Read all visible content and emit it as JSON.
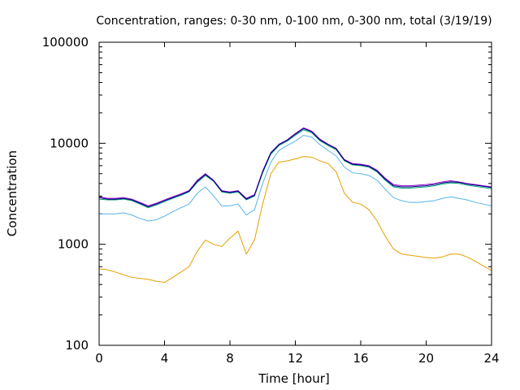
{
  "chart_data": {
    "type": "line",
    "title": "Concentration, ranges: 0-30 nm, 0-100 nm, 0-300 nm, total (3/19/19)",
    "xlabel": "Time [hour]",
    "ylabel": "Concentration",
    "xlim": [
      0,
      24
    ],
    "ylim": [
      100,
      100000
    ],
    "yscale": "log",
    "grid": false,
    "x_ticks": [
      "0",
      "4",
      "8",
      "12",
      "16",
      "20",
      "24"
    ],
    "y_ticks": [
      "100",
      "1000",
      "10000",
      "100000"
    ],
    "colors": {
      "series1": "#e69f00",
      "series2": "#56b4e9",
      "series3": "#009e73",
      "series4": "#9400d3",
      "series5": "#000080"
    },
    "x": [
      0,
      0.5,
      1,
      1.5,
      2,
      2.5,
      3,
      3.5,
      4,
      4.5,
      5,
      5.5,
      6,
      6.5,
      7,
      7.5,
      8,
      8.5,
      9,
      9.5,
      10,
      10.5,
      11,
      11.5,
      12,
      12.5,
      13,
      13.5,
      14,
      14.5,
      15,
      15.5,
      16,
      16.5,
      17,
      17.5,
      18,
      18.5,
      19,
      19.5,
      20,
      20.5,
      21,
      21.5,
      22,
      22.5,
      23,
      23.5,
      24
    ],
    "series": [
      {
        "values": [
          570,
          560,
          530,
          500,
          470,
          460,
          450,
          430,
          420,
          470,
          530,
          600,
          850,
          1100,
          1000,
          950,
          1150,
          1350,
          800,
          1100,
          2500,
          5000,
          6500,
          6700,
          7000,
          7400,
          7300,
          6700,
          6300,
          5200,
          3200,
          2600,
          2500,
          2200,
          1700,
          1200,
          900,
          800,
          780,
          760,
          740,
          730,
          750,
          800,
          800,
          750,
          680,
          610,
          550
        ]
      },
      {
        "values": [
          2000,
          2000,
          2000,
          2050,
          1950,
          1800,
          1700,
          1750,
          1900,
          2100,
          2300,
          2500,
          3200,
          3700,
          3000,
          2400,
          2400,
          2500,
          1950,
          2200,
          4000,
          6500,
          8500,
          9500,
          10500,
          12000,
          11500,
          9700,
          8500,
          7500,
          5800,
          5100,
          5000,
          4800,
          4300,
          3500,
          2900,
          2700,
          2600,
          2600,
          2650,
          2700,
          2850,
          2950,
          2850,
          2750,
          2600,
          2500,
          2400
        ]
      },
      {
        "values": [
          2800,
          2750,
          2750,
          2800,
          2700,
          2500,
          2300,
          2450,
          2650,
          2850,
          3050,
          3300,
          4100,
          4800,
          4200,
          3300,
          3200,
          3300,
          2750,
          3000,
          5100,
          7800,
          9500,
          10500,
          12000,
          13600,
          12700,
          10600,
          9500,
          8600,
          6700,
          6100,
          6000,
          5800,
          5200,
          4300,
          3700,
          3600,
          3600,
          3650,
          3700,
          3800,
          3950,
          4050,
          4000,
          3850,
          3750,
          3650,
          3550
        ]
      },
      {
        "values": [
          2950,
          2850,
          2850,
          2900,
          2800,
          2600,
          2400,
          2550,
          2750,
          2950,
          3150,
          3400,
          4300,
          5000,
          4300,
          3400,
          3300,
          3400,
          2850,
          3100,
          5300,
          8100,
          9800,
          10800,
          12500,
          14200,
          13200,
          11000,
          9800,
          8900,
          6900,
          6300,
          6200,
          6000,
          5400,
          4500,
          3900,
          3800,
          3800,
          3850,
          3900,
          4000,
          4150,
          4250,
          4150,
          4000,
          3900,
          3800,
          3700
        ]
      },
      {
        "values": [
          2900,
          2800,
          2800,
          2850,
          2750,
          2550,
          2350,
          2500,
          2700,
          2900,
          3100,
          3350,
          4200,
          4900,
          4250,
          3350,
          3250,
          3350,
          2800,
          3050,
          5200,
          8000,
          9700,
          10700,
          12300,
          14000,
          13000,
          10800,
          9700,
          8800,
          6800,
          6200,
          6100,
          5900,
          5300,
          4400,
          3800,
          3700,
          3700,
          3750,
          3800,
          3900,
          4050,
          4150,
          4100,
          3950,
          3850,
          3750,
          3650
        ]
      }
    ]
  }
}
